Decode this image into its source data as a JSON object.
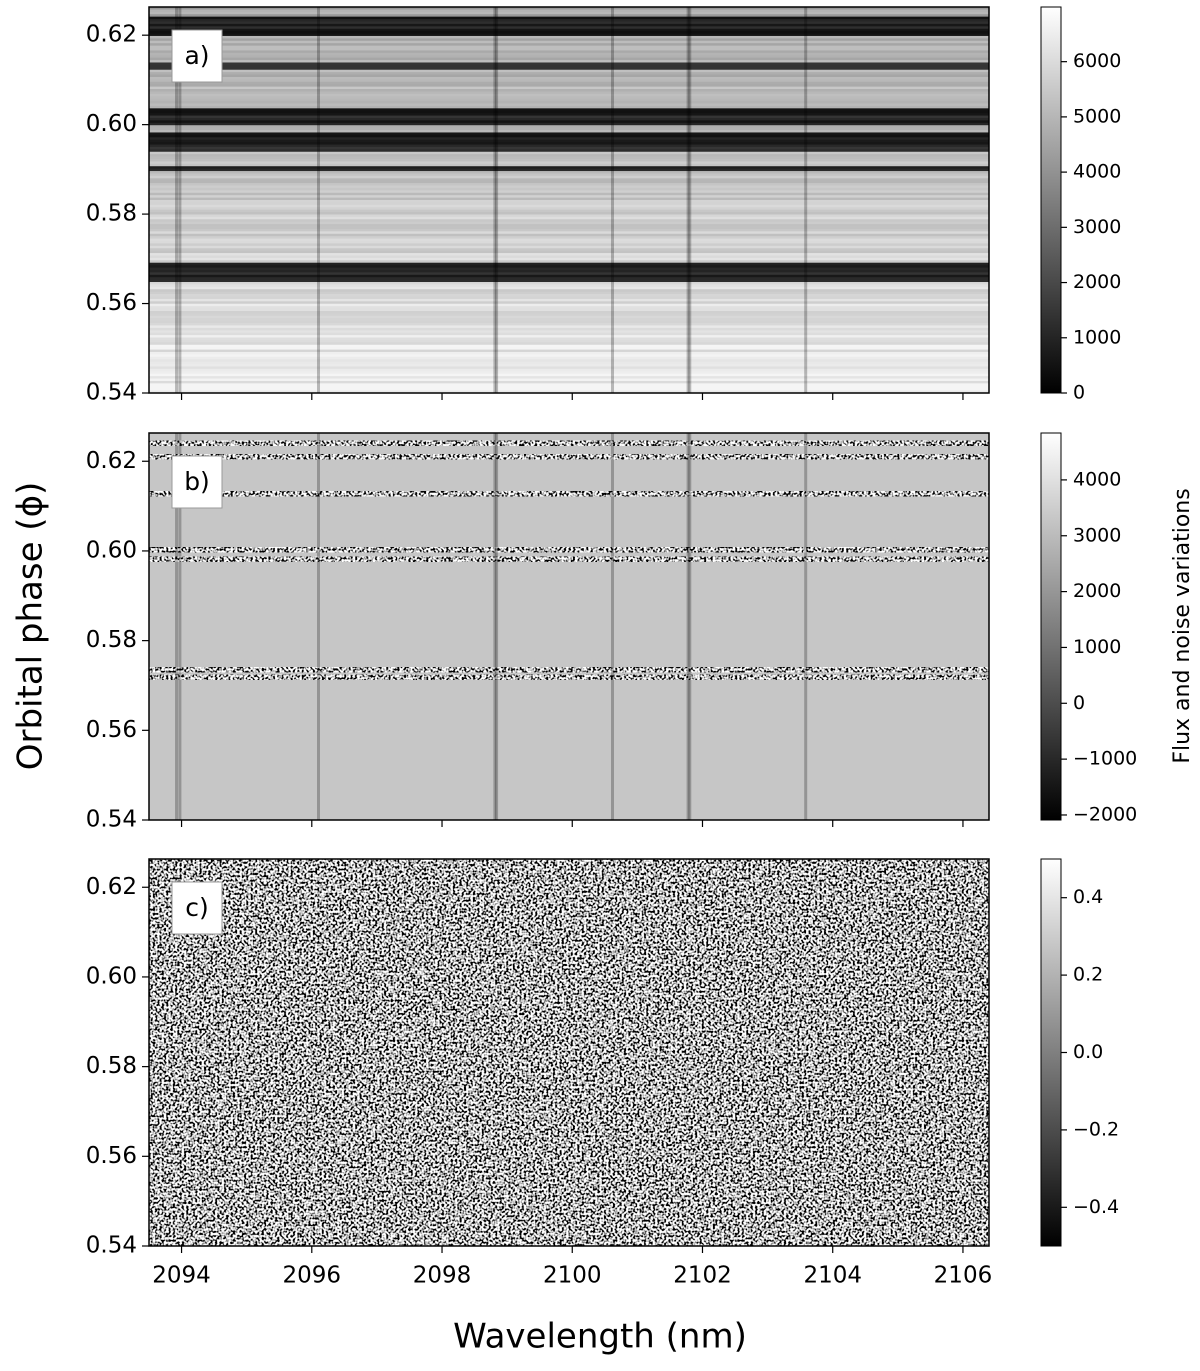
{
  "xlabel": "Wavelength (nm)",
  "ylabel": "Orbital phase (ϕ)",
  "colorbar_label": "Flux and noise variations",
  "chart_data": [
    {
      "type": "heatmap",
      "panel_label": "a)",
      "xlim": [
        2093.5,
        2106.4
      ],
      "xticks": [
        2094,
        2096,
        2098,
        2100,
        2102,
        2104,
        2106
      ],
      "xtick_labels": false,
      "ylim": [
        0.54,
        0.6263
      ],
      "yticks": [
        0.54,
        0.56,
        0.58,
        {
          "value": 0.6,
          "label": "0.60"
        },
        0.62
      ],
      "clim": [
        0,
        6990
      ],
      "cticks": [
        0,
        1000,
        2000,
        3000,
        4000,
        5000,
        6000
      ]
    },
    {
      "type": "heatmap",
      "panel_label": "b)",
      "xlim": [
        2093.5,
        2106.4
      ],
      "xticks": [
        2094,
        2096,
        2098,
        2100,
        2102,
        2104,
        2106
      ],
      "xtick_labels": false,
      "ylim": [
        0.54,
        0.6263
      ],
      "yticks": [
        0.54,
        0.56,
        0.58,
        {
          "value": 0.6,
          "label": "0.60"
        },
        0.62
      ],
      "clim": [
        -2090,
        4840
      ],
      "cticks": [
        {
          "value": -2000,
          "label": "−2000"
        },
        {
          "value": -1000,
          "label": "−1000"
        },
        0,
        1000,
        2000,
        3000,
        4000
      ]
    },
    {
      "type": "heatmap",
      "panel_label": "c)",
      "xlim": [
        2093.5,
        2106.4
      ],
      "xticks": [
        2094,
        2096,
        2098,
        2100,
        2102,
        2104,
        2106
      ],
      "xtick_labels": true,
      "ylim": [
        0.54,
        0.6263
      ],
      "yticks": [
        0.54,
        0.56,
        0.58,
        {
          "value": 0.6,
          "label": "0.60"
        },
        0.62
      ],
      "clim": [
        -0.5,
        0.5
      ],
      "cticks": [
        {
          "value": -0.4,
          "label": "−0.4"
        },
        {
          "value": -0.2,
          "label": "−0.2"
        },
        {
          "value": 0.0,
          "label": "0.0"
        },
        0.2,
        0.4
      ]
    }
  ]
}
